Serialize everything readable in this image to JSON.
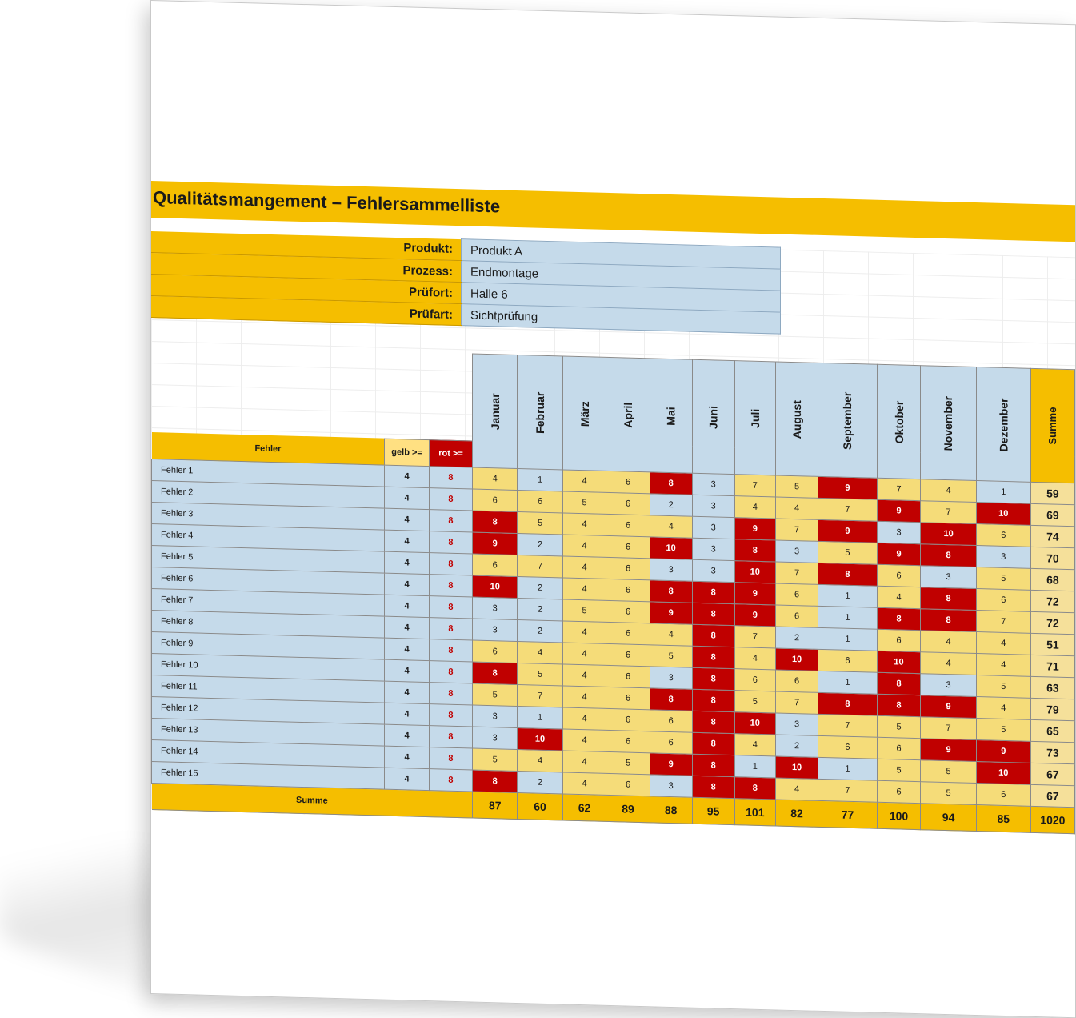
{
  "title": "Qualitätsmangement – Fehlersammelliste",
  "info": [
    {
      "label": "Produkt:",
      "value": "Produkt A"
    },
    {
      "label": "Prozess:",
      "value": "Endmontage"
    },
    {
      "label": "Prüfort:",
      "value": "Halle 6"
    },
    {
      "label": "Prüfart:",
      "value": "Sichtprüfung"
    }
  ],
  "table": {
    "fehler_header": "Fehler",
    "gelb_header": "gelb >=",
    "rot_header": "rot >=",
    "sum_header": "Summe",
    "months": [
      "Januar",
      "Februar",
      "März",
      "April",
      "Mai",
      "Juni",
      "Juli",
      "August",
      "September",
      "Oktober",
      "November",
      "Dezember"
    ],
    "rows": [
      {
        "name": "Fehler 1",
        "gelb": "4",
        "rot": "8",
        "values": [
          4,
          1,
          4,
          6,
          8,
          3,
          7,
          5,
          9,
          7,
          4,
          1
        ],
        "sum": "59"
      },
      {
        "name": "Fehler 2",
        "gelb": "4",
        "rot": "8",
        "values": [
          6,
          6,
          5,
          6,
          2,
          3,
          4,
          4,
          7,
          9,
          7,
          10
        ],
        "sum": "69"
      },
      {
        "name": "Fehler 3",
        "gelb": "4",
        "rot": "8",
        "values": [
          8,
          5,
          4,
          6,
          4,
          3,
          9,
          7,
          9,
          3,
          10,
          6
        ],
        "sum": "74"
      },
      {
        "name": "Fehler 4",
        "gelb": "4",
        "rot": "8",
        "values": [
          9,
          2,
          4,
          6,
          10,
          3,
          8,
          3,
          5,
          9,
          8,
          3
        ],
        "sum": "70"
      },
      {
        "name": "Fehler 5",
        "gelb": "4",
        "rot": "8",
        "values": [
          6,
          7,
          4,
          6,
          3,
          3,
          10,
          7,
          8,
          6,
          3,
          5
        ],
        "sum": "68"
      },
      {
        "name": "Fehler 6",
        "gelb": "4",
        "rot": "8",
        "values": [
          10,
          2,
          4,
          6,
          8,
          8,
          9,
          6,
          1,
          4,
          8,
          6
        ],
        "sum": "72"
      },
      {
        "name": "Fehler 7",
        "gelb": "4",
        "rot": "8",
        "values": [
          3,
          2,
          5,
          6,
          9,
          8,
          9,
          6,
          1,
          8,
          8,
          7
        ],
        "sum": "72"
      },
      {
        "name": "Fehler 8",
        "gelb": "4",
        "rot": "8",
        "values": [
          3,
          2,
          4,
          6,
          4,
          8,
          7,
          2,
          1,
          6,
          4,
          4
        ],
        "sum": "51"
      },
      {
        "name": "Fehler 9",
        "gelb": "4",
        "rot": "8",
        "values": [
          6,
          4,
          4,
          6,
          5,
          8,
          4,
          10,
          6,
          10,
          4,
          4
        ],
        "sum": "71"
      },
      {
        "name": "Fehler 10",
        "gelb": "4",
        "rot": "8",
        "values": [
          8,
          5,
          4,
          6,
          3,
          8,
          6,
          6,
          1,
          8,
          3,
          5
        ],
        "sum": "63"
      },
      {
        "name": "Fehler 11",
        "gelb": "4",
        "rot": "8",
        "values": [
          5,
          7,
          4,
          6,
          8,
          8,
          5,
          7,
          8,
          8,
          9,
          4
        ],
        "sum": "79"
      },
      {
        "name": "Fehler 12",
        "gelb": "4",
        "rot": "8",
        "values": [
          3,
          1,
          4,
          6,
          6,
          8,
          10,
          3,
          7,
          5,
          7,
          5
        ],
        "sum": "65"
      },
      {
        "name": "Fehler 13",
        "gelb": "4",
        "rot": "8",
        "values": [
          3,
          10,
          4,
          6,
          6,
          8,
          4,
          2,
          6,
          6,
          9,
          9
        ],
        "sum": "73"
      },
      {
        "name": "Fehler 14",
        "gelb": "4",
        "rot": "8",
        "values": [
          5,
          4,
          4,
          5,
          9,
          8,
          1,
          10,
          1,
          5,
          5,
          10
        ],
        "sum": "67"
      },
      {
        "name": "Fehler 15",
        "gelb": "4",
        "rot": "8",
        "values": [
          8,
          2,
          4,
          6,
          3,
          8,
          8,
          4,
          7,
          6,
          5,
          6
        ],
        "sum": "67"
      }
    ],
    "footer_label": "Summe",
    "month_sums": [
      "87",
      "60",
      "62",
      "89",
      "88",
      "95",
      "101",
      "82",
      "77",
      "100",
      "94",
      "85"
    ],
    "grand_total": "1020"
  },
  "colors": {
    "header_orange": "#f5be00",
    "cell_blue": "#c5daea",
    "cell_yellow": "#f5dc79",
    "cell_red": "#c00000"
  }
}
